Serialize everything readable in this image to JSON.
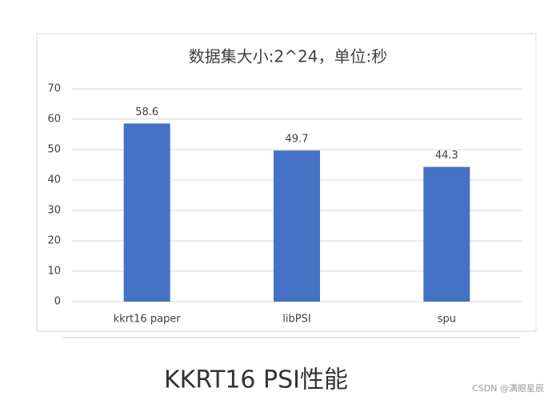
{
  "chart_data": {
    "type": "bar",
    "title": "数据集大小:2^24，单位:秒",
    "categories": [
      "kkrt16 paper",
      "libPSI",
      "spu"
    ],
    "values": [
      58.6,
      49.7,
      44.3
    ],
    "color": "#4472c4",
    "ylim": [
      0,
      70
    ],
    "yticks": [
      0,
      10,
      20,
      30,
      40,
      50,
      60,
      70
    ],
    "grid": true
  },
  "caption": "KKRT16 PSI性能",
  "watermark": "CSDN @满眼星辰"
}
